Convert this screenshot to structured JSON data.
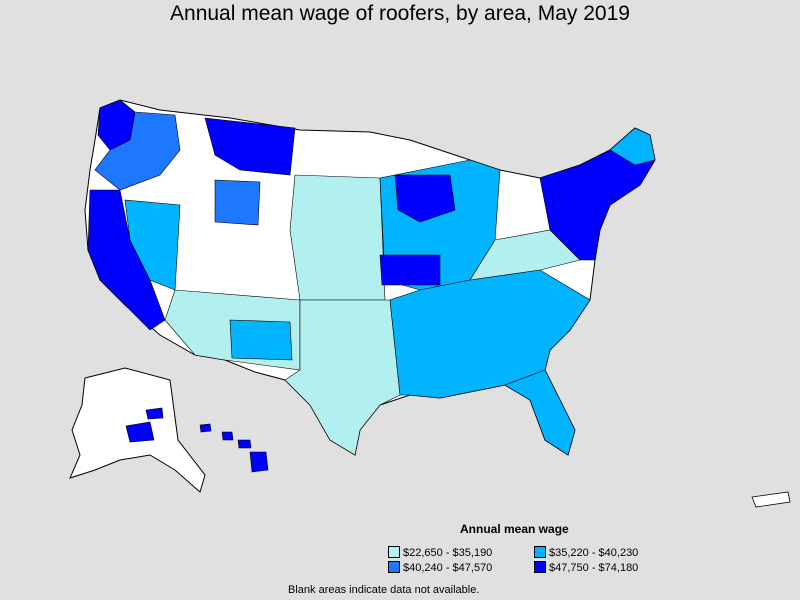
{
  "title": "Annual mean wage of roofers, by area, May 2019",
  "legend": {
    "title": "Annual mean wage",
    "items": [
      {
        "label": "$22,650 - $35,190",
        "color": "#b2f0f0"
      },
      {
        "label": "$35,220 - $40,230",
        "color": "#00b4ff"
      },
      {
        "label": "$40,240 - $47,570",
        "color": "#1e78ff"
      },
      {
        "label": "$47,750 - $74,180",
        "color": "#0000ff"
      }
    ]
  },
  "footnote": "Blank areas indicate data not available.",
  "map": {
    "land_color": "#ffffff",
    "border_color": "#000000",
    "regions_shown": [
      "contiguous-us",
      "alaska",
      "hawaii",
      "puerto-rico"
    ]
  }
}
